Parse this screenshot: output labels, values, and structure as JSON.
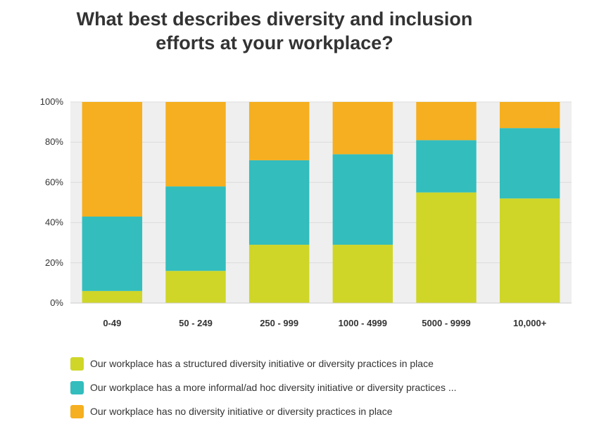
{
  "chart_data": {
    "type": "bar",
    "stacked": true,
    "title": "What best describes diversity and inclusion efforts at your workplace?",
    "title_lines": [
      "What best describes diversity and inclusion",
      "efforts at your workplace?"
    ],
    "categories": [
      "0-49",
      "50 - 249",
      "250 - 999",
      "1000 - 4999",
      "5000 - 9999",
      "10,000+"
    ],
    "y_ticks": [
      "0%",
      "20%",
      "40%",
      "60%",
      "80%",
      "100%"
    ],
    "ylim": [
      0,
      100
    ],
    "series": [
      {
        "name": "Our workplace has a structured diversity initiative or diversity practices in place",
        "color": "#cfd628",
        "values": [
          6,
          16,
          29,
          29,
          55,
          52
        ]
      },
      {
        "name": "Our workplace has a more informal/ad hoc diversity initiative or diversity practices ...",
        "color": "#33bdbd",
        "values": [
          37,
          42,
          42,
          45,
          26,
          35
        ]
      },
      {
        "name": "Our workplace has no diversity initiative or diversity practices in place",
        "color": "#f5af20",
        "values": [
          57,
          42,
          29,
          26,
          19,
          13
        ]
      }
    ],
    "grid": true,
    "legend_position": "bottom"
  }
}
